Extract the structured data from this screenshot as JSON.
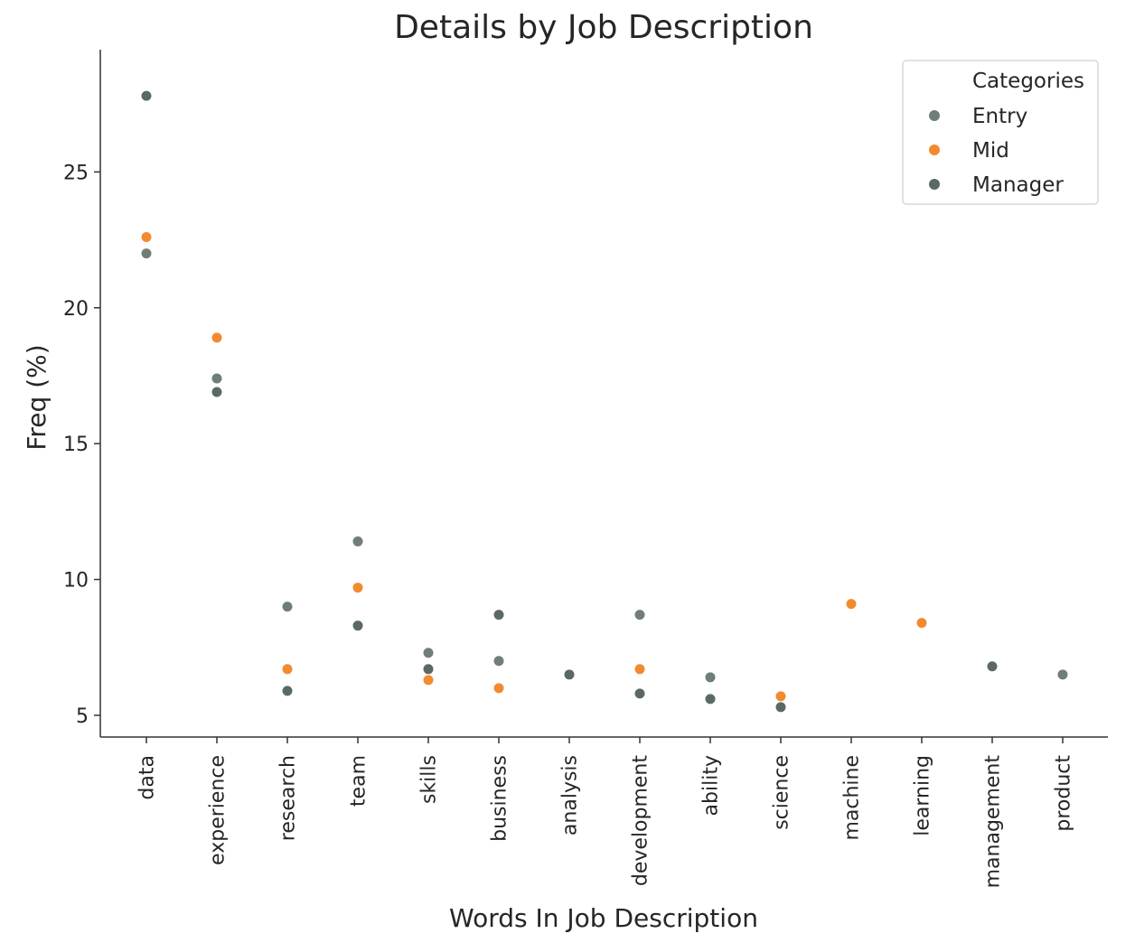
{
  "colors": {
    "entry": "#6f7e78",
    "mid": "#f28a30",
    "manager": "#5a6a63",
    "axis": "#333333",
    "text": "#262626",
    "legend_border": "#d9d9d9"
  },
  "chart_data": {
    "type": "scatter",
    "title": "Details by Job Description",
    "xlabel": "Words In Job Description",
    "ylabel": "Freq (%)",
    "categories": [
      "data",
      "experience",
      "research",
      "team",
      "skills",
      "business",
      "analysis",
      "development",
      "ability",
      "science",
      "machine",
      "learning",
      "management",
      "product"
    ],
    "ylim": [
      4.2,
      29.5
    ],
    "yticks": [
      5,
      10,
      15,
      20,
      25
    ],
    "grid": false,
    "legend": {
      "title": "Categories",
      "placement": "top-right"
    },
    "series": [
      {
        "name": "Entry",
        "color": "#6f7e78",
        "points": [
          {
            "x": "data",
            "y": 22.0
          },
          {
            "x": "experience",
            "y": 17.4
          },
          {
            "x": "research",
            "y": 9.0
          },
          {
            "x": "team",
            "y": 11.4
          },
          {
            "x": "skills",
            "y": 7.3
          },
          {
            "x": "business",
            "y": 7.0
          },
          {
            "x": "development",
            "y": 8.7
          },
          {
            "x": "ability",
            "y": 6.4
          },
          {
            "x": "product",
            "y": 6.5
          }
        ]
      },
      {
        "name": "Mid",
        "color": "#f28a30",
        "points": [
          {
            "x": "data",
            "y": 22.6
          },
          {
            "x": "experience",
            "y": 18.9
          },
          {
            "x": "research",
            "y": 6.7
          },
          {
            "x": "team",
            "y": 9.7
          },
          {
            "x": "skills",
            "y": 6.3
          },
          {
            "x": "business",
            "y": 6.0
          },
          {
            "x": "development",
            "y": 6.7
          },
          {
            "x": "science",
            "y": 5.7
          },
          {
            "x": "machine",
            "y": 9.1
          },
          {
            "x": "learning",
            "y": 8.4
          }
        ]
      },
      {
        "name": "Manager",
        "color": "#5a6a63",
        "points": [
          {
            "x": "data",
            "y": 27.8
          },
          {
            "x": "experience",
            "y": 16.9
          },
          {
            "x": "research",
            "y": 5.9
          },
          {
            "x": "team",
            "y": 8.3
          },
          {
            "x": "skills",
            "y": 6.7
          },
          {
            "x": "business",
            "y": 8.7
          },
          {
            "x": "analysis",
            "y": 6.5
          },
          {
            "x": "development",
            "y": 5.8
          },
          {
            "x": "ability",
            "y": 5.6
          },
          {
            "x": "science",
            "y": 5.3
          },
          {
            "x": "management",
            "y": 6.8
          }
        ]
      }
    ]
  }
}
